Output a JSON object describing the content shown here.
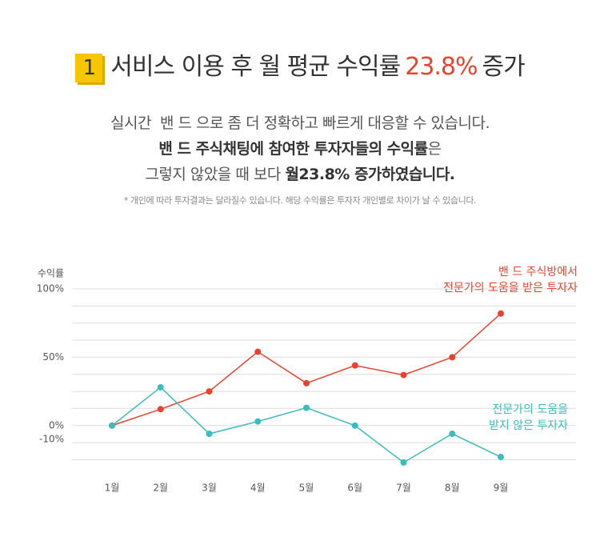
{
  "header": {
    "badge": "1",
    "title": "서비스 이용 후 월 평균 수익률",
    "highlight": "23.8%",
    "suffix": "증가"
  },
  "intro": [
    [
      {
        "text": "실시간  밴 드 으로 좀 더 정확하고 빠르게 대응할 수 있습니다.",
        "bold": false
      }
    ],
    [
      {
        "text": "밴 드 주식채팅에 참여한 투자자들의 수익률",
        "bold": true
      },
      {
        "text": "은",
        "bold": false
      }
    ],
    [
      {
        "text": "그렇지 않았을 때 보다 ",
        "bold": false
      },
      {
        "text": "월23.8% 증가하였습니다.",
        "bold": true
      }
    ]
  ],
  "note": "* 개인에 따라 투자결과는 달라질수 있습니다. 해당 수익률은 투자자 개인별로 차이가 날 수 있습니다.",
  "chart_data": {
    "type": "line",
    "ylabel": "수익률",
    "categories": [
      "1월",
      "2월",
      "3월",
      "4월",
      "5월",
      "6월",
      "7월",
      "8월",
      "9월"
    ],
    "series": [
      {
        "name": "밴 드  주식방에서\n전문가의 도움을 받은 투자자",
        "color": "#e5452f",
        "values": [
          0,
          12,
          25,
          54,
          31,
          44,
          37,
          50,
          82
        ]
      },
      {
        "name": "전문가의 도움을\n받지 않은 투자자",
        "color": "#3cbcbd",
        "values": [
          0,
          28,
          -6,
          3,
          13,
          0,
          -27,
          -6,
          -23
        ]
      }
    ],
    "ylim": [
      -30,
      100
    ],
    "yticks": [
      {
        "value": 100,
        "label": "100%"
      },
      {
        "value": 50,
        "label": "50%"
      },
      {
        "value": 0,
        "label": "0%"
      },
      {
        "value": -10,
        "label": "-10%"
      }
    ],
    "grid_lines": [
      100,
      87.5,
      75,
      62.5,
      50,
      37.5,
      25,
      12.5,
      0,
      -12.5,
      -25
    ],
    "grid": true
  }
}
